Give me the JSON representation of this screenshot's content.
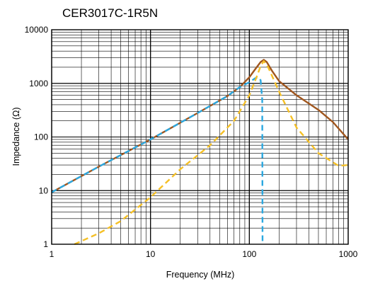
{
  "chart_data": {
    "type": "line",
    "title": "CER3017C-1R5N",
    "xlabel": "Frequency (MHz)",
    "ylabel": "Impedance (Ω)",
    "x_scale": "log",
    "y_scale": "log",
    "xlim": [
      1,
      1000
    ],
    "ylim": [
      1,
      10000
    ],
    "grid": true,
    "x_tick_labels": [
      "1",
      "10",
      "100",
      "1000"
    ],
    "y_tick_labels": [
      "1",
      "10",
      "100",
      "1000",
      "10000"
    ],
    "series": [
      {
        "color": "#A0561E",
        "style": "solid",
        "points": [
          [
            1,
            9.3
          ],
          [
            3,
            28
          ],
          [
            10,
            90
          ],
          [
            30,
            280
          ],
          [
            60,
            580
          ],
          [
            80,
            850
          ],
          [
            100,
            1300
          ],
          [
            115,
            1850
          ],
          [
            130,
            2500
          ],
          [
            140,
            2750
          ],
          [
            150,
            2500
          ],
          [
            170,
            1700
          ],
          [
            200,
            1100
          ],
          [
            300,
            600
          ],
          [
            500,
            320
          ],
          [
            700,
            190
          ],
          [
            1000,
            90
          ]
        ]
      },
      {
        "color": "#2BA8E0",
        "style": "dashed",
        "points": [
          [
            1,
            9.3
          ],
          [
            3,
            28
          ],
          [
            10,
            90
          ],
          [
            30,
            280
          ],
          [
            60,
            580
          ],
          [
            80,
            850
          ],
          [
            100,
            1050
          ],
          [
            115,
            1250
          ],
          [
            122,
            1300
          ],
          [
            130,
            1150
          ],
          [
            135,
            500
          ],
          [
            136,
            1
          ]
        ]
      },
      {
        "color": "#F5C026",
        "style": "dashed",
        "points": [
          [
            1.7,
            1
          ],
          [
            3,
            1.6
          ],
          [
            5,
            2.7
          ],
          [
            10,
            7.5
          ],
          [
            20,
            25
          ],
          [
            40,
            70
          ],
          [
            70,
            200
          ],
          [
            100,
            600
          ],
          [
            120,
            1400
          ],
          [
            130,
            2100
          ],
          [
            140,
            2600
          ],
          [
            155,
            2000
          ],
          [
            200,
            700
          ],
          [
            300,
            150
          ],
          [
            500,
            50
          ],
          [
            800,
            29
          ],
          [
            1000,
            30
          ]
        ]
      }
    ]
  }
}
